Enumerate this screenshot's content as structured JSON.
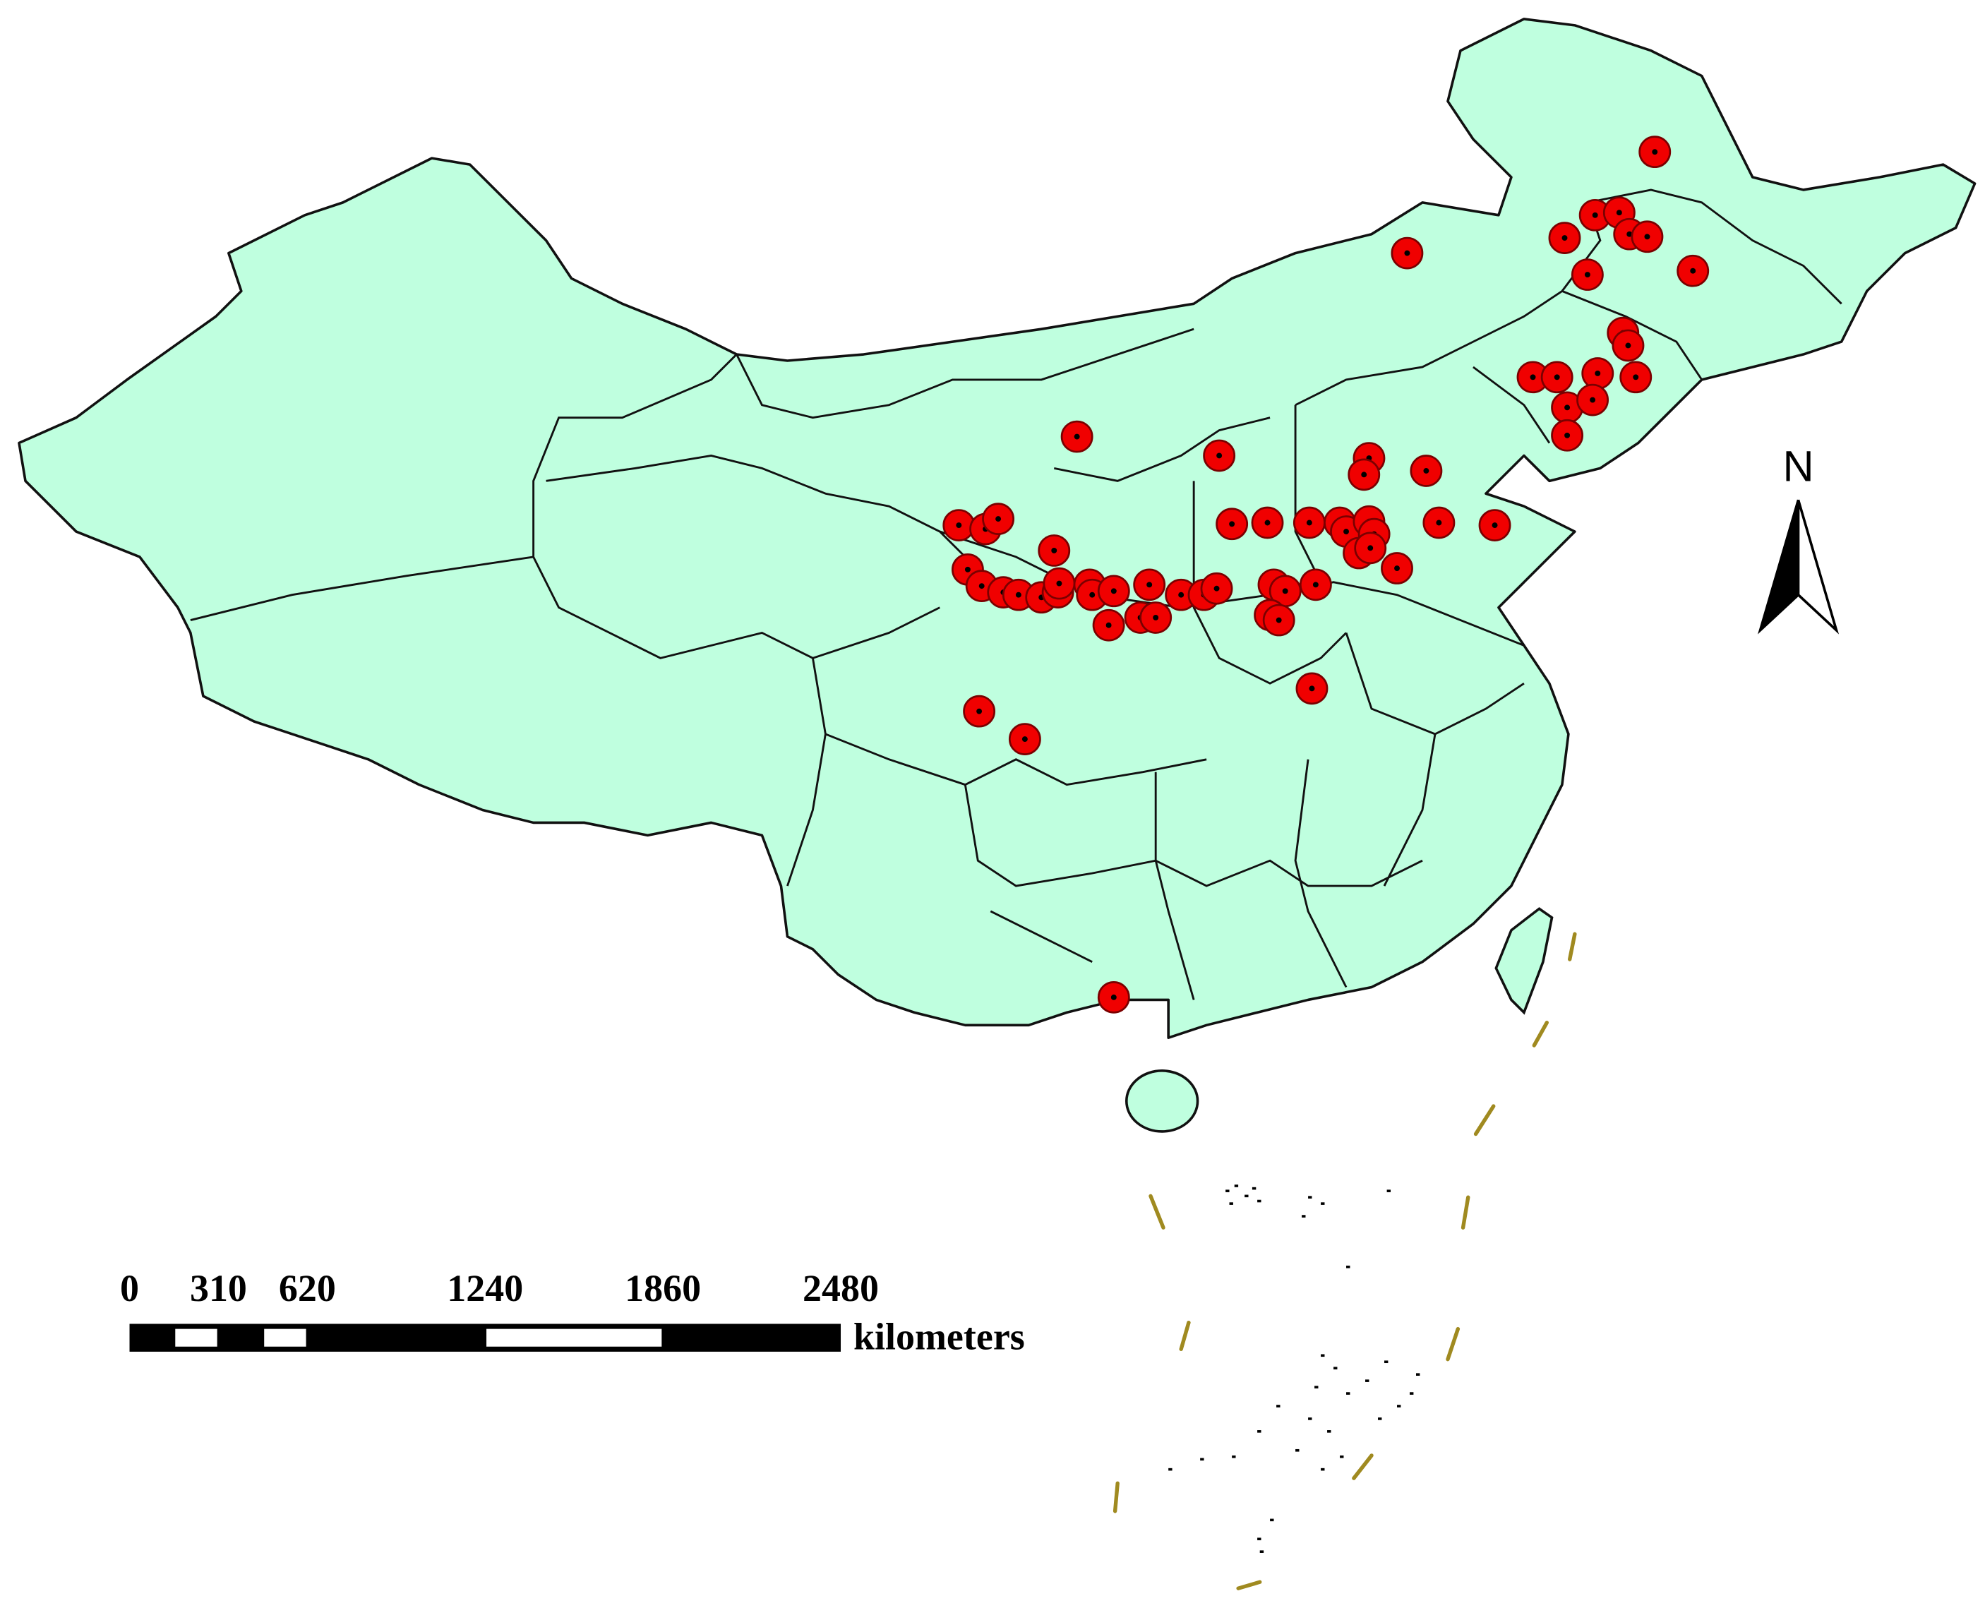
{
  "north_label": "N",
  "scale_bar": {
    "ticks": [
      0,
      310,
      620,
      1240,
      1860,
      2480
    ],
    "unit": "kilometers"
  }
}
